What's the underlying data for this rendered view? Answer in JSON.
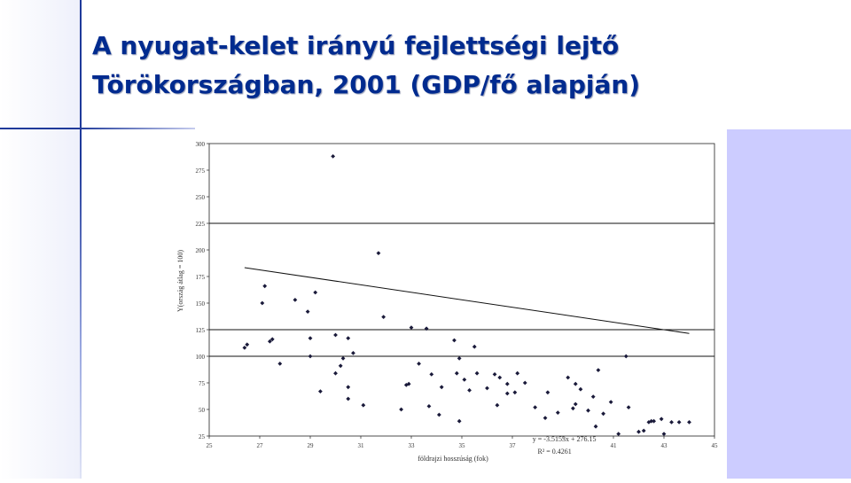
{
  "slide": {
    "title": "A nyugat-kelet irányú fejlettségi lejtő\nTörökországban, 2001 (GDP/fő alapján)"
  },
  "colors": {
    "title": "#002b8f",
    "accent_line": "#1f3a9a",
    "right_panel": "#ccccff",
    "points": "#1a1a3a"
  },
  "chart_data": {
    "type": "scatter",
    "xlabel": "földrajzi hosszúság (fok)",
    "ylabel": "Y(ország átlag = 100)",
    "xlim": [
      25,
      45
    ],
    "ylim": [
      25,
      300
    ],
    "xticks": [
      25,
      27,
      29,
      31,
      33,
      35,
      37,
      39,
      41,
      43,
      45
    ],
    "xtick_labels": [
      "25",
      "27",
      "29",
      "31",
      "33",
      "35",
      "37",
      "",
      "41",
      "43",
      "45"
    ],
    "yticks": [
      25,
      50,
      75,
      100,
      125,
      150,
      175,
      200,
      225,
      250,
      275,
      300
    ],
    "gridlines": [
      100,
      125,
      225
    ],
    "annotation": [
      "y = -3.5153x + 276.15",
      "R² = 0.4261"
    ],
    "trendline": {
      "slope": -3.5153,
      "intercept": 276.15,
      "x_range": [
        26.4,
        44
      ]
    },
    "points": [
      [
        26.4,
        108
      ],
      [
        26.5,
        111
      ],
      [
        27.1,
        150
      ],
      [
        27.2,
        166
      ],
      [
        27.4,
        114
      ],
      [
        27.5,
        116
      ],
      [
        27.8,
        93
      ],
      [
        28.4,
        153
      ],
      [
        28.9,
        142
      ],
      [
        29.0,
        117
      ],
      [
        29.0,
        100
      ],
      [
        29.2,
        160
      ],
      [
        29.4,
        67
      ],
      [
        29.9,
        288
      ],
      [
        30.0,
        120
      ],
      [
        30.0,
        84
      ],
      [
        30.2,
        91
      ],
      [
        30.3,
        98
      ],
      [
        30.5,
        117
      ],
      [
        30.5,
        71
      ],
      [
        30.5,
        60
      ],
      [
        30.7,
        103
      ],
      [
        31.1,
        54
      ],
      [
        31.7,
        197
      ],
      [
        31.9,
        137
      ],
      [
        32.6,
        50
      ],
      [
        32.8,
        73
      ],
      [
        32.9,
        74
      ],
      [
        33.0,
        127
      ],
      [
        33.3,
        93
      ],
      [
        33.6,
        126
      ],
      [
        33.7,
        53
      ],
      [
        33.8,
        83
      ],
      [
        34.1,
        45
      ],
      [
        34.2,
        71
      ],
      [
        34.7,
        115
      ],
      [
        34.8,
        84
      ],
      [
        34.9,
        98
      ],
      [
        34.9,
        39
      ],
      [
        35.1,
        78
      ],
      [
        35.3,
        68
      ],
      [
        35.5,
        109
      ],
      [
        35.6,
        84
      ],
      [
        36.0,
        70
      ],
      [
        36.3,
        83
      ],
      [
        36.4,
        54
      ],
      [
        36.5,
        80
      ],
      [
        36.8,
        65
      ],
      [
        36.8,
        74
      ],
      [
        37.1,
        66
      ],
      [
        37.2,
        84
      ],
      [
        37.5,
        75
      ],
      [
        37.9,
        52
      ],
      [
        38.3,
        42
      ],
      [
        38.4,
        66
      ],
      [
        38.8,
        47
      ],
      [
        39.2,
        80
      ],
      [
        39.4,
        51
      ],
      [
        39.5,
        74
      ],
      [
        39.5,
        55
      ],
      [
        39.7,
        69
      ],
      [
        40.0,
        49
      ],
      [
        40.2,
        62
      ],
      [
        40.3,
        34
      ],
      [
        40.4,
        87
      ],
      [
        40.6,
        46
      ],
      [
        40.9,
        57
      ],
      [
        41.2,
        27
      ],
      [
        41.5,
        100
      ],
      [
        41.6,
        52
      ],
      [
        42.0,
        29
      ],
      [
        42.2,
        30
      ],
      [
        42.4,
        38
      ],
      [
        42.5,
        39
      ],
      [
        42.6,
        39
      ],
      [
        42.9,
        41
      ],
      [
        43.0,
        27
      ],
      [
        43.3,
        38
      ],
      [
        43.6,
        38
      ],
      [
        44.0,
        38
      ]
    ]
  }
}
